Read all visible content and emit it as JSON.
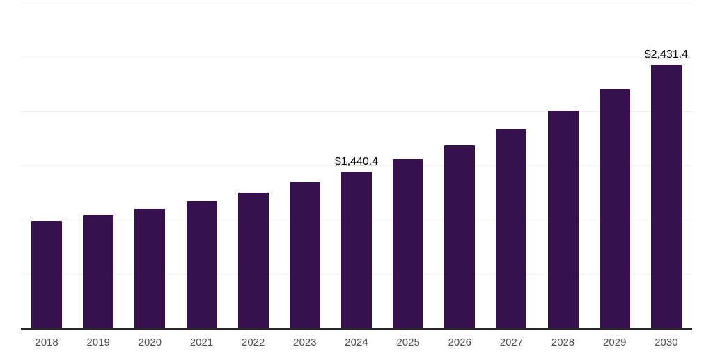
{
  "chart": {
    "background": "#ffffff",
    "bar_color": "#36114e",
    "axis_line_color": "#262626",
    "gridline_color": "#efefef",
    "tick_label_color": "#4d4d4d",
    "data_label_color": "#000000"
  },
  "chart_data": {
    "type": "bar",
    "title": "",
    "xlabel": "",
    "ylabel": "",
    "categories": [
      "2018",
      "2019",
      "2020",
      "2021",
      "2022",
      "2023",
      "2024",
      "2025",
      "2026",
      "2027",
      "2028",
      "2029",
      "2030"
    ],
    "values": [
      990,
      1045,
      1105,
      1170,
      1250,
      1345,
      1440.4,
      1556,
      1685,
      1834,
      2004,
      2208,
      2431.4
    ],
    "data_labels": {
      "2024": "$1,440.4",
      "2030": "$2,431.4"
    },
    "ylim": [
      0,
      3000
    ],
    "grid_interval": 500,
    "grid": "horizontal-only",
    "legend": "none",
    "y_axis_tick_labels_visible": false
  }
}
